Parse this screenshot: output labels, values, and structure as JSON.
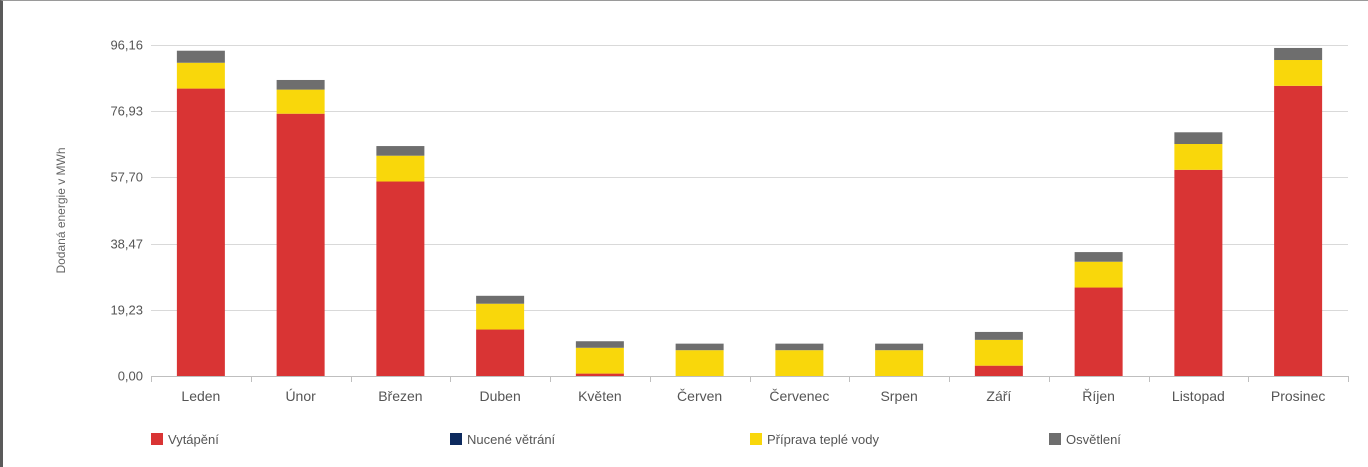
{
  "chart_data": {
    "type": "bar",
    "stacked": true,
    "ylabel": "Dodaná energie v MWh",
    "ylim": [
      0,
      96.16
    ],
    "yticks": [
      "0,00",
      "19,23",
      "38,47",
      "57,70",
      "76,93",
      "96,16"
    ],
    "ytick_values": [
      0,
      19.23,
      38.47,
      57.7,
      76.93,
      96.16
    ],
    "grid": true,
    "legend_position": "bottom",
    "categories": [
      "Leden",
      "Únor",
      "Březen",
      "Duben",
      "Květen",
      "Červen",
      "Červenec",
      "Srpen",
      "Září",
      "Říjen",
      "Listopad",
      "Prosinec"
    ],
    "series": [
      {
        "name": "Vytápění",
        "color": "#d93434",
        "values": [
          83.5,
          76.2,
          56.5,
          13.5,
          0.7,
          0.0,
          0.0,
          0.0,
          3.0,
          25.7,
          59.9,
          84.3
        ]
      },
      {
        "name": "Nucené větrání",
        "color": "#0d2a5e",
        "values": [
          0,
          0,
          0,
          0,
          0,
          0,
          0,
          0,
          0,
          0,
          0,
          0
        ]
      },
      {
        "name": "Příprava teplé vody",
        "color": "#f9d70b",
        "values": [
          7.5,
          7.0,
          7.5,
          7.5,
          7.5,
          7.5,
          7.5,
          7.5,
          7.5,
          7.5,
          7.5,
          7.5
        ]
      },
      {
        "name": "Osvětlení",
        "color": "#6e6e6e",
        "values": [
          3.5,
          2.8,
          2.8,
          2.3,
          1.9,
          1.9,
          1.9,
          1.9,
          2.3,
          2.8,
          3.4,
          3.5
        ]
      }
    ]
  }
}
